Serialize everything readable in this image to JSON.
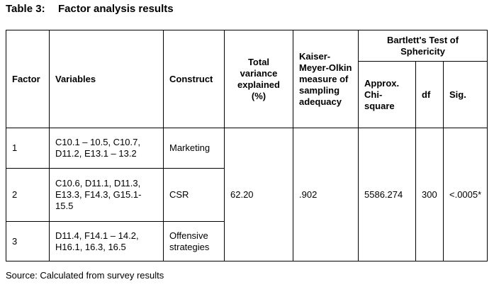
{
  "caption": {
    "number": "Table 3:",
    "title": "Factor analysis results"
  },
  "table": {
    "headers": {
      "factor": "Factor",
      "variables": "Variables",
      "construct": "Construct",
      "total_variance": "Total variance explained (%)",
      "kmo": "Kaiser-Meyer-Olkin measure of sampling adequacy",
      "bartlett": "Bartlett's Test of Sphericity",
      "approx_chi_square": "Approx. Chi-square",
      "df": "df",
      "sig": "Sig."
    },
    "rows": [
      {
        "factor": "1",
        "variables": "C10.1 – 10.5, C10.7, D11.2, E13.1 – 13.2",
        "construct": "Marketing"
      },
      {
        "factor": "2",
        "variables": "C10.6, D11.1, D11.3, E13.3, F14.3, G15.1-15.5",
        "construct": "CSR"
      },
      {
        "factor": "3",
        "variables": "D11.4, F14.1 – 14.2, H16.1, 16.3, 16.5",
        "construct": "Offensive strategies"
      }
    ],
    "shared": {
      "total_variance": "62.20",
      "kmo": ".902",
      "approx_chi_square": "5586.274",
      "df": "300",
      "sig": "<.0005*"
    }
  },
  "source": "Source:  Calculated from survey results"
}
